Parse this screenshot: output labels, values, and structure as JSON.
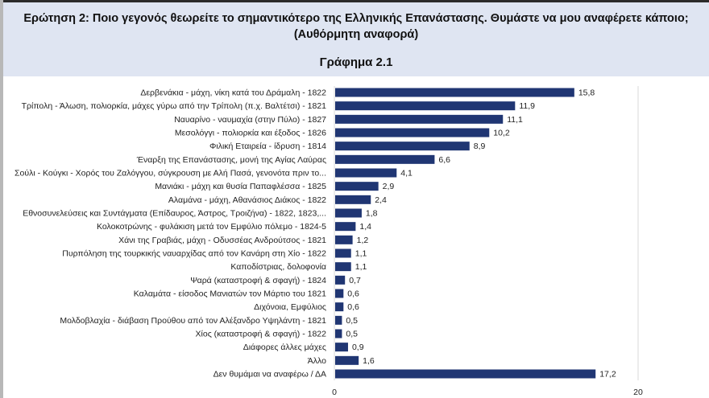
{
  "header": {
    "question": "Ερώτηση 2: Ποιο γεγονός θεωρείτε το σημαντικότερο της Ελληνικής Επανάστασης. Θυμάστε να μου αναφέρετε κάποιο;",
    "question_note": "(Αυθόρμητη αναφορά)",
    "chart_title": "Γράφημα 2.1"
  },
  "chart_data": {
    "type": "bar",
    "orientation": "horizontal",
    "title": "Γράφημα 2.1",
    "categories": [
      "Δερβενάκια - μάχη, νίκη κατά του Δράμαλη - 1822",
      "Τρίπολη - Άλωση, πολιορκία, μάχες γύρω από την Τρίπολη (π.χ. Βαλτέτσι) - 1821",
      "Ναυαρίνο - ναυμαχία (στην Πύλο) - 1827",
      "Μεσολόγγι - πολιορκία και έξοδος - 1826",
      "Φιλική Εταιρεία - ίδρυση - 1814",
      "Έναρξη της Επανάστασης, μονή της Αγίας Λαύρας",
      "Σούλι - Κούγκι - Χορός του Ζαλόγγου, σύγκρουση με Αλή Πασά, γενονότα πριν το...",
      "Μανιάκι - μάχη και θυσία Παπαφλέσσα - 1825",
      "Αλαμάνα - μάχη, Αθανάσιος Διάκος - 1822",
      "Εθνοσυνελεύσεις και Συντάγματα (Επίδαυρος, Άστρος, Τροιζήνα) - 1822, 1823,...",
      "Κολοκοτρώνης - φυλάκιση μετά τον Εμφύλιο πόλεμο - 1824-5",
      "Χάνι της Γραβιάς, μάχη - Οδυσσέας Ανδρούτσος - 1821",
      "Πυρπόληση της τουρκικής ναυαρχίδας από τον Κανάρη στη Χίο - 1822",
      "Καποδίστριας, δολοφονία",
      "Ψαρά (καταστροφή & σφαγή) - 1824",
      "Καλαμάτα - είσοδος Μανιατών τον Μάρτιο του 1821",
      "Διχόνοια, Εμφύλιος",
      "Μολδοβλαχία - διάβαση Προύθου από τον Αλέξανδρο Υψηλάντη - 1821",
      "Χίος (καταστροφή & σφαγή) - 1822",
      "Διάφορες άλλες μάχες",
      "Άλλο",
      "Δεν θυμάμαι να αναφέρω / ΔΑ"
    ],
    "values": [
      15.8,
      11.9,
      11.1,
      10.2,
      8.9,
      6.6,
      4.1,
      2.9,
      2.4,
      1.8,
      1.4,
      1.2,
      1.1,
      1.1,
      0.7,
      0.6,
      0.6,
      0.5,
      0.5,
      0.9,
      1.6,
      17.2
    ],
    "value_labels": [
      "15,8",
      "11,9",
      "11,1",
      "10,2",
      "8,9",
      "6,6",
      "4,1",
      "2,9",
      "2,4",
      "1,8",
      "1,4",
      "1,2",
      "1,1",
      "1,1",
      "0,7",
      "0,6",
      "0,6",
      "0,5",
      "0,5",
      "0,9",
      "1,6",
      "17,2"
    ],
    "xlim": [
      0,
      20
    ],
    "xticks": [
      "0",
      "20"
    ],
    "grid": true,
    "bar_color": "#203673"
  }
}
